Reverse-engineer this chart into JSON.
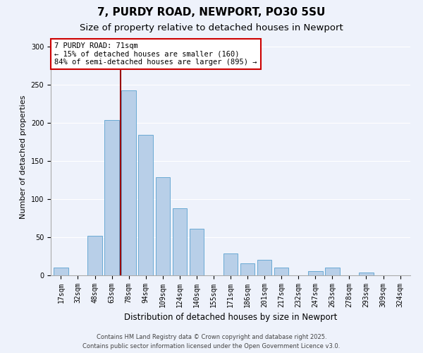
{
  "title": "7, PURDY ROAD, NEWPORT, PO30 5SU",
  "subtitle": "Size of property relative to detached houses in Newport",
  "xlabel": "Distribution of detached houses by size in Newport",
  "ylabel": "Number of detached properties",
  "categories": [
    "17sqm",
    "32sqm",
    "48sqm",
    "63sqm",
    "78sqm",
    "94sqm",
    "109sqm",
    "124sqm",
    "140sqm",
    "155sqm",
    "171sqm",
    "186sqm",
    "201sqm",
    "217sqm",
    "232sqm",
    "247sqm",
    "263sqm",
    "278sqm",
    "293sqm",
    "309sqm",
    "324sqm"
  ],
  "values": [
    10,
    0,
    52,
    204,
    242,
    184,
    129,
    88,
    61,
    0,
    29,
    16,
    20,
    10,
    0,
    6,
    10,
    0,
    4,
    0,
    0
  ],
  "bar_color": "#b8cfe8",
  "bar_edge_color": "#6aaad4",
  "ylim": [
    0,
    310
  ],
  "yticks": [
    0,
    50,
    100,
    150,
    200,
    250,
    300
  ],
  "vline_x_index": 3.5,
  "vline_color": "#990000",
  "annotation_title": "7 PURDY ROAD: 71sqm",
  "annotation_line1": "← 15% of detached houses are smaller (160)",
  "annotation_line2": "84% of semi-detached houses are larger (895) →",
  "annotation_box_color": "#ffffff",
  "annotation_box_edge": "#cc0000",
  "footer_line1": "Contains HM Land Registry data © Crown copyright and database right 2025.",
  "footer_line2": "Contains public sector information licensed under the Open Government Licence v3.0.",
  "background_color": "#eef2fb",
  "grid_color": "#ffffff",
  "title_fontsize": 11,
  "subtitle_fontsize": 9.5,
  "xlabel_fontsize": 8.5,
  "ylabel_fontsize": 8,
  "tick_fontsize": 7,
  "annotation_fontsize": 7.5,
  "footer_fontsize": 6
}
